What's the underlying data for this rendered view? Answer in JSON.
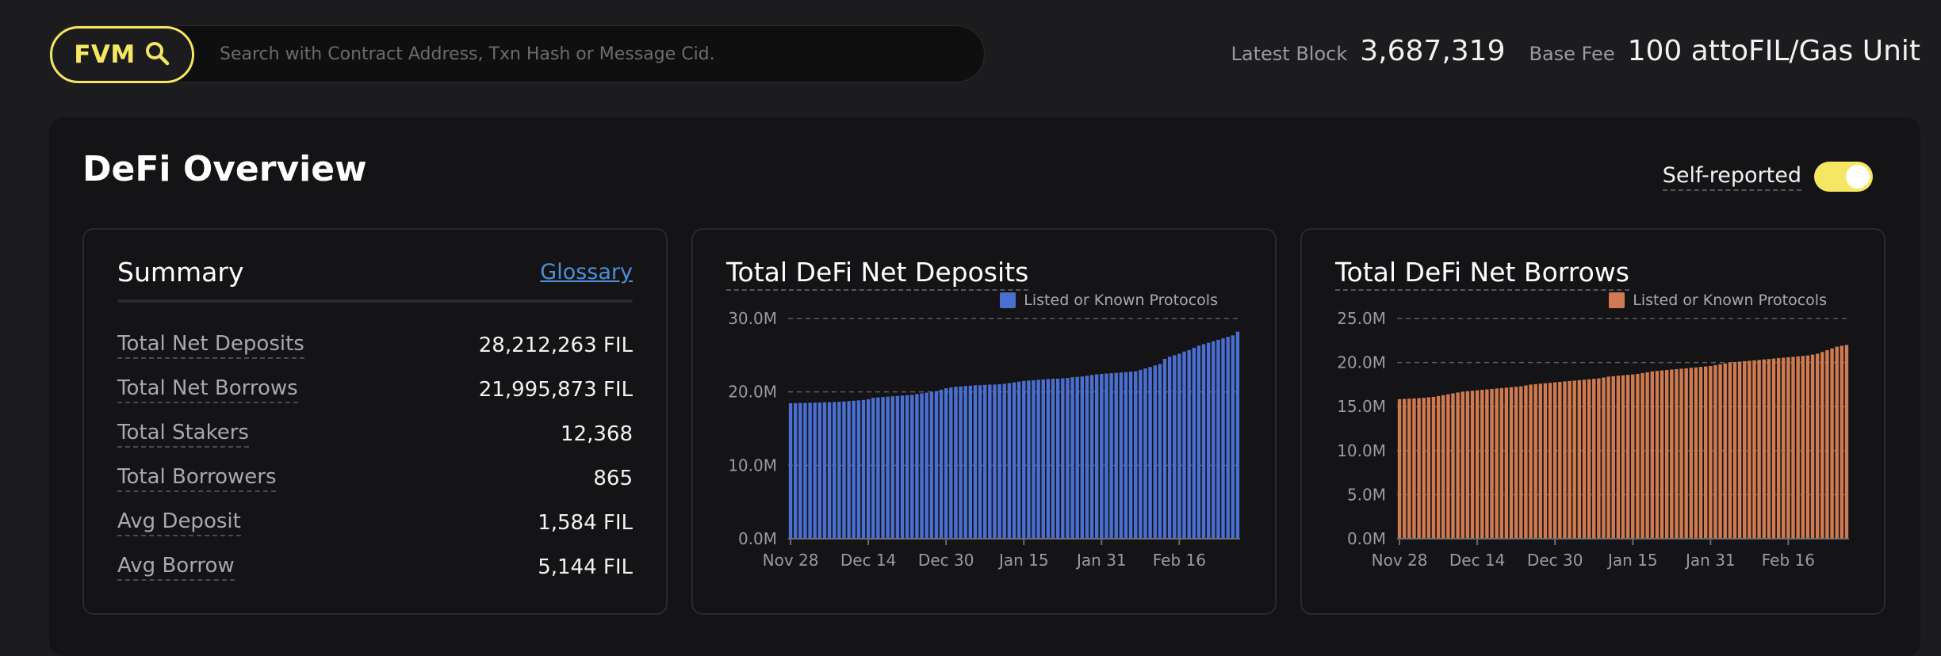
{
  "search": {
    "badge": "FVM",
    "placeholder": "Search with Contract Address, Txn Hash or Message Cid."
  },
  "header_stats": {
    "latest_block_label": "Latest Block",
    "latest_block_value": "3,687,319",
    "base_fee_label": "Base Fee",
    "base_fee_value": "100 attoFIL/Gas Unit"
  },
  "page": {
    "title": "DeFi Overview",
    "toggle_label": "Self-reported",
    "toggle_on": true
  },
  "summary": {
    "title": "Summary",
    "glossary": "Glossary",
    "rows": [
      {
        "label": "Total Net Deposits",
        "value": "28,212,263 FIL"
      },
      {
        "label": "Total Net Borrows",
        "value": "21,995,873 FIL"
      },
      {
        "label": "Total Stakers",
        "value": "12,368"
      },
      {
        "label": "Total Borrowers",
        "value": "865"
      },
      {
        "label": "Avg Deposit",
        "value": "1,584 FIL"
      },
      {
        "label": "Avg Borrow",
        "value": "5,144 FIL"
      }
    ]
  },
  "colors": {
    "accent": "#f5e663",
    "deposits_bar": "#4a6fd1",
    "borrows_bar": "#d07a52",
    "link": "#4d8fd8"
  },
  "chart_data": [
    {
      "type": "bar",
      "title": "Total DeFi Net Deposits",
      "legend": "Listed or Known Protocols",
      "legend_position": "top-right",
      "x_tick_labels": [
        "Nov 28",
        "Dec 14",
        "Dec 30",
        "Jan 15",
        "Jan 31",
        "Feb 16"
      ],
      "y_tick_labels": [
        "0.0M",
        "10.0M",
        "20.0M",
        "30.0M"
      ],
      "ylim": [
        0,
        30000000
      ],
      "grid": "horizontal-dashed",
      "series": [
        {
          "name": "Listed or Known Protocols",
          "color": "#4a6fd1",
          "values": [
            18450000,
            18470000,
            18490000,
            18500000,
            18520000,
            18540000,
            18560000,
            18580000,
            18600000,
            18620000,
            18650000,
            18700000,
            18750000,
            18800000,
            18850000,
            18900000,
            19000000,
            19200000,
            19250000,
            19300000,
            19350000,
            19400000,
            19450000,
            19500000,
            19550000,
            19600000,
            19700000,
            19800000,
            19900000,
            20000000,
            20100000,
            20300000,
            20500000,
            20600000,
            20700000,
            20750000,
            20800000,
            20850000,
            20900000,
            20900000,
            20950000,
            21000000,
            21000000,
            21050000,
            21100000,
            21200000,
            21300000,
            21400000,
            21500000,
            21550000,
            21600000,
            21650000,
            21700000,
            21750000,
            21800000,
            21800000,
            21850000,
            21900000,
            22000000,
            22050000,
            22100000,
            22200000,
            22300000,
            22400000,
            22450000,
            22500000,
            22550000,
            22600000,
            22650000,
            22700000,
            22750000,
            22800000,
            23000000,
            23200000,
            23400000,
            23600000,
            23800000,
            24500000,
            24800000,
            25000000,
            25200000,
            25500000,
            25700000,
            26000000,
            26300000,
            26500000,
            26700000,
            26900000,
            27100000,
            27300000,
            27500000,
            27700000,
            28212263
          ]
        }
      ]
    },
    {
      "type": "bar",
      "title": "Total DeFi Net Borrows",
      "legend": "Listed or Known Protocols",
      "legend_position": "top-right",
      "x_tick_labels": [
        "Nov 28",
        "Dec 14",
        "Dec 30",
        "Jan 15",
        "Jan 31",
        "Feb 16"
      ],
      "y_tick_labels": [
        "0.0M",
        "5.0M",
        "10.0M",
        "15.0M",
        "20.0M",
        "25.0M"
      ],
      "ylim": [
        0,
        25000000
      ],
      "grid": "horizontal-dashed",
      "series": [
        {
          "name": "Listed or Known Protocols",
          "color": "#d07a52",
          "values": [
            15850000,
            15870000,
            15900000,
            15930000,
            15960000,
            16000000,
            16050000,
            16100000,
            16200000,
            16300000,
            16400000,
            16500000,
            16600000,
            16700000,
            16750000,
            16800000,
            16850000,
            16900000,
            16950000,
            17000000,
            17050000,
            17100000,
            17150000,
            17200000,
            17250000,
            17300000,
            17400000,
            17500000,
            17550000,
            17600000,
            17650000,
            17700000,
            17750000,
            17800000,
            17850000,
            17900000,
            17950000,
            18000000,
            18050000,
            18100000,
            18150000,
            18200000,
            18300000,
            18400000,
            18450000,
            18500000,
            18550000,
            18600000,
            18650000,
            18700000,
            18800000,
            18900000,
            19000000,
            19050000,
            19100000,
            19150000,
            19200000,
            19250000,
            19300000,
            19350000,
            19400000,
            19450000,
            19500000,
            19550000,
            19600000,
            19700000,
            19800000,
            19900000,
            20000000,
            20050000,
            20100000,
            20150000,
            20200000,
            20250000,
            20300000,
            20350000,
            20400000,
            20450000,
            20500000,
            20550000,
            20600000,
            20650000,
            20700000,
            20750000,
            20800000,
            20900000,
            21000000,
            21200000,
            21400000,
            21600000,
            21800000,
            21900000,
            21995873
          ]
        }
      ]
    }
  ]
}
